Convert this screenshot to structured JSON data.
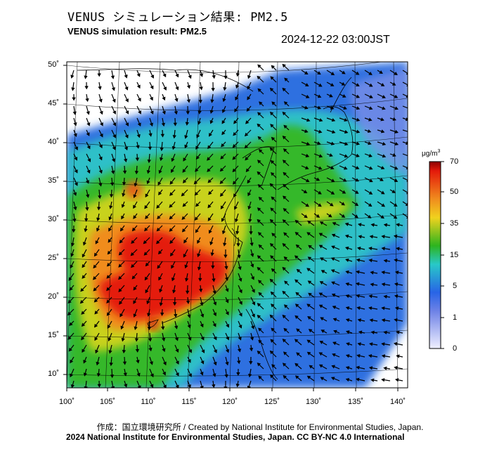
{
  "header": {
    "title_jp": "VENUS シミュレーション結果: PM2.5",
    "title_en": "VENUS simulation result: PM2.5",
    "datetime": "2024-12-22 03:00JST"
  },
  "axes": {
    "lat_labels": [
      "50˚",
      "45˚",
      "40˚",
      "35˚",
      "30˚",
      "25˚",
      "20˚",
      "15˚",
      "10˚"
    ],
    "lon_labels": [
      "100˚",
      "105˚",
      "110˚",
      "115˚",
      "120˚",
      "125˚",
      "130˚",
      "135˚",
      "140˚"
    ]
  },
  "colorbar": {
    "unit_prefix": "μg/m",
    "unit_sup": "3",
    "ticks": [
      "70",
      "50",
      "35",
      "15",
      "5",
      "1",
      "0"
    ]
  },
  "credits": {
    "line1": "作成：国立環境研究所 / Created by National Institute for Environmental Studies, Japan.",
    "line2": "2024 National Institute for Environmental Studies, Japan. CC BY-NC 4.0 International"
  },
  "colors": {
    "pm_70": "#e41a0a",
    "pm_50": "#f08c1e",
    "pm_35": "#c8d21e",
    "pm_15": "#2db41e",
    "pm_5": "#28c8c8",
    "pm_1": "#2864e6",
    "pm_0": "#f0f0ff"
  }
}
